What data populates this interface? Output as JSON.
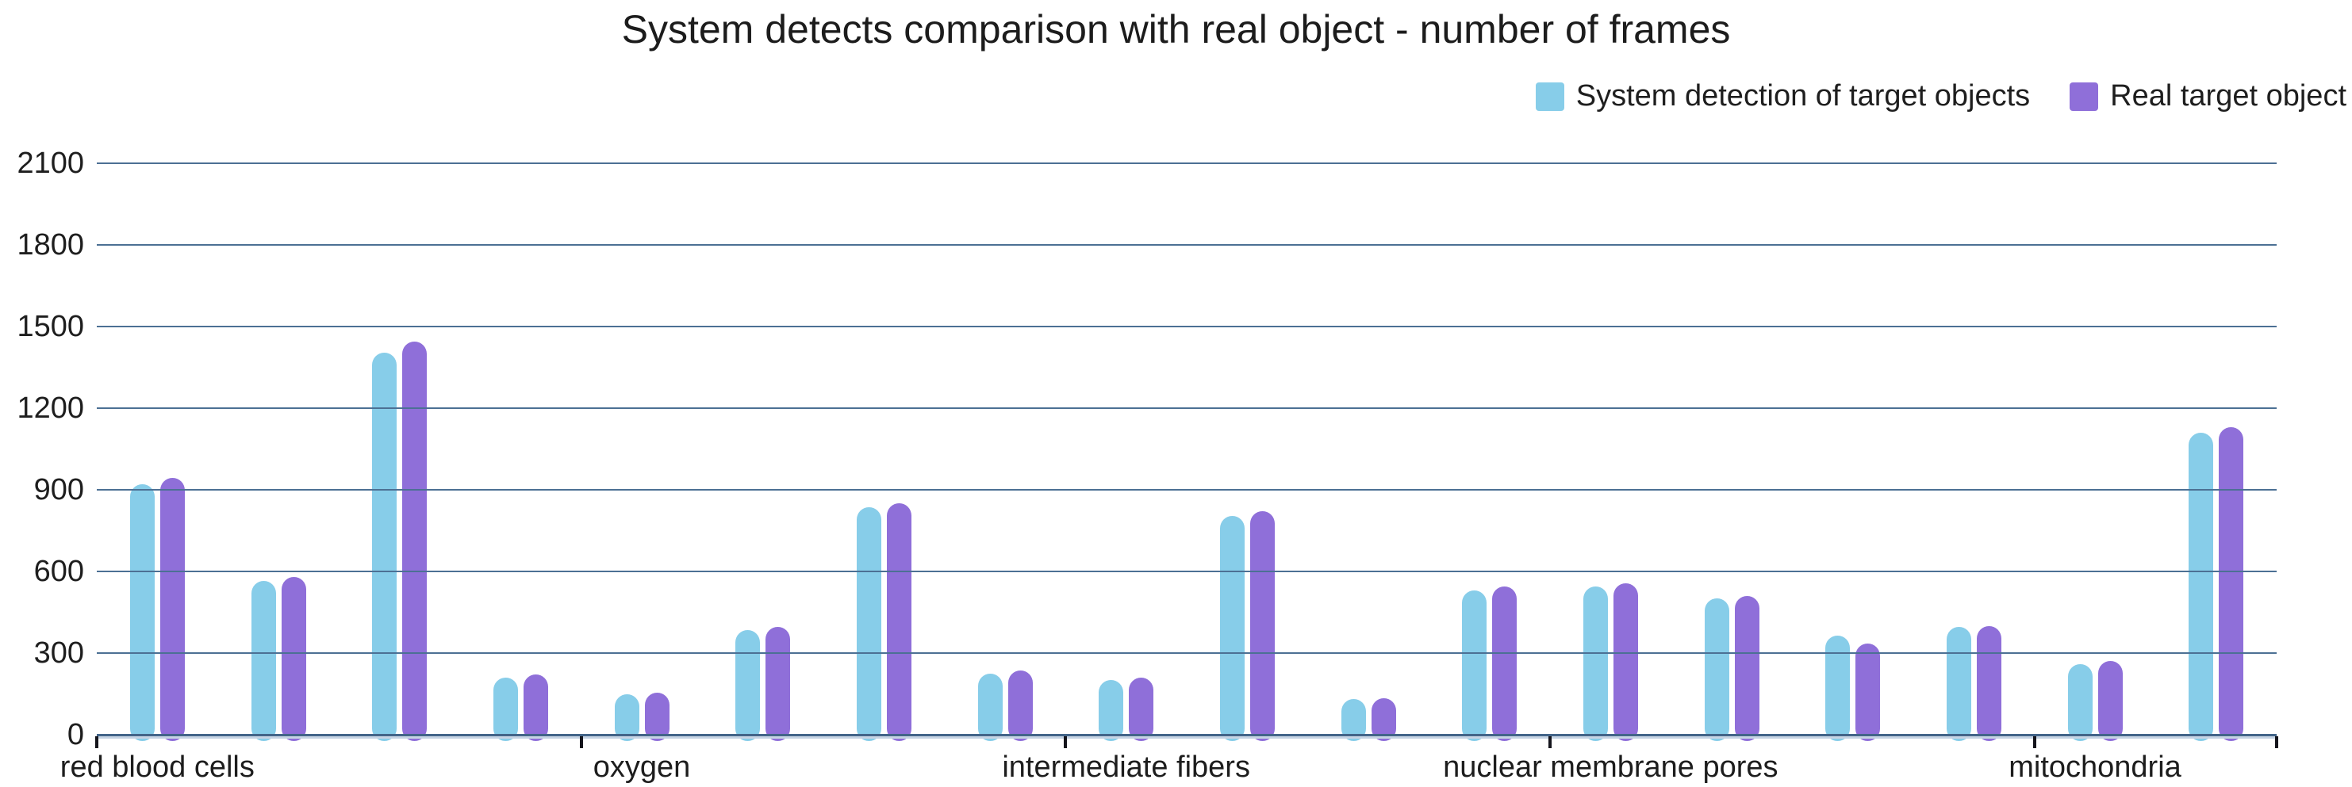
{
  "title": "System detects comparison with real object - number of frames",
  "legend": {
    "items": [
      {
        "label": "System detection of target objects",
        "color": "#87cde9"
      },
      {
        "label": "Real target object",
        "color": "#8f6fd9"
      }
    ]
  },
  "chart_data": {
    "type": "bar",
    "title": "System detects comparison with real object - number of frames",
    "xlabel": "",
    "ylabel": "",
    "ylim": [
      0,
      2100
    ],
    "y_ticks": [
      0,
      300,
      600,
      900,
      1200,
      1500,
      1800,
      2100
    ],
    "grid": true,
    "gridline_color": "#4c7094",
    "legend_position": "top-right",
    "bar_corner": "rounded-top",
    "categories": [
      "red blood cells",
      "",
      "",
      "",
      "oxygen",
      "",
      "",
      "",
      "intermediate fibers",
      "",
      "",
      "",
      "nuclear membrane pores",
      "",
      "",
      "",
      "mitochondria",
      ""
    ],
    "label_interval": 4,
    "group_tick_boundaries": [
      0,
      4,
      8,
      12,
      16,
      18
    ],
    "series": [
      {
        "name": "System detection of target objects",
        "color": "#87cde9",
        "values": [
          920,
          565,
          1405,
          210,
          150,
          385,
          835,
          225,
          200,
          805,
          130,
          530,
          545,
          500,
          365,
          395,
          260,
          1110
        ]
      },
      {
        "name": "Real target object",
        "color": "#8f6fd9",
        "values": [
          945,
          580,
          1445,
          220,
          155,
          395,
          850,
          235,
          210,
          820,
          135,
          545,
          555,
          510,
          335,
          400,
          270,
          1130
        ]
      }
    ]
  }
}
